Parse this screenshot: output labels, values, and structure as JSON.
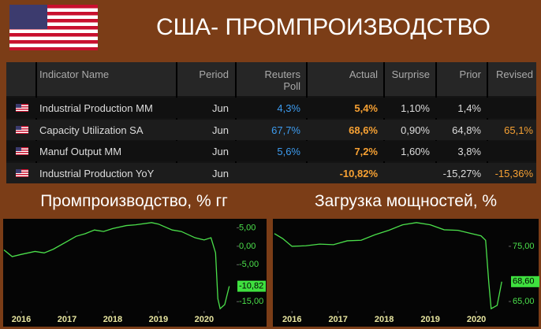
{
  "header": {
    "title": "США- ПРОМПРОИЗВОДСТВО"
  },
  "table": {
    "columns": [
      "Indicator Name",
      "Period",
      "Reuters Poll",
      "Actual",
      "Surprise",
      "Prior",
      "Revised"
    ],
    "rows": [
      [
        "Industrial Production MM",
        "Jun",
        "4,3%",
        "5,4%",
        "1,10%",
        "1,4%",
        null
      ],
      [
        "Capacity Utilization SA",
        "Jun",
        "67,7%",
        "68,6%",
        "0,90%",
        "64,8%",
        "65,1%"
      ],
      [
        "Manuf Output MM",
        "Jun",
        "5,6%",
        "7,2%",
        "1,60%",
        "3,8%",
        null
      ],
      [
        "Industrial Production YoY",
        "Jun",
        null,
        "-10,82%",
        null,
        "-15,27%",
        "-15,36%"
      ]
    ]
  },
  "chart_data": [
    {
      "type": "line",
      "title": "Промпроизводство, % гг",
      "color": "#4be04b",
      "x": [
        2015.62,
        2015.8,
        2016.0,
        2016.3,
        2016.5,
        2016.7,
        2017.0,
        2017.2,
        2017.4,
        2017.6,
        2017.8,
        2018.0,
        2018.3,
        2018.5,
        2018.85,
        2019.0,
        2019.3,
        2019.5,
        2019.8,
        2020.0,
        2020.15,
        2020.25,
        2020.3,
        2020.35,
        2020.45,
        2020.55
      ],
      "values": [
        -1.0,
        -2.8,
        -2.2,
        -1.4,
        -1.8,
        -0.8,
        1.3,
        2.7,
        3.4,
        4.4,
        4.0,
        4.8,
        5.6,
        5.8,
        6.4,
        6.0,
        4.4,
        4.0,
        2.3,
        1.7,
        2.3,
        -1.8,
        -14.2,
        -16.9,
        -15.8,
        -10.82
      ],
      "xlim": [
        2015.62,
        2020.71
      ],
      "xticks": [
        2016,
        2017,
        2018,
        2019,
        2020
      ],
      "ylim": [
        -17.5,
        7
      ],
      "yticks": [
        {
          "value": 5,
          "label": "5,00"
        },
        {
          "value": 0,
          "label": "0,00"
        },
        {
          "value": -5,
          "label": "-5,00"
        },
        {
          "value": -15,
          "label": "-15,00"
        }
      ],
      "last_value": {
        "value": -10.82,
        "label": "-10,82"
      }
    },
    {
      "type": "line",
      "title": "Загрузка мощностей, %",
      "color": "#4be04b",
      "x": [
        2015.62,
        2015.8,
        2016.0,
        2016.3,
        2016.6,
        2016.9,
        2017.2,
        2017.5,
        2017.8,
        2018.1,
        2018.4,
        2018.7,
        2019.0,
        2019.3,
        2019.6,
        2019.9,
        2020.1,
        2020.2,
        2020.27,
        2020.32,
        2020.45,
        2020.55
      ],
      "values": [
        77.3,
        76.4,
        75.0,
        75.1,
        75.4,
        75.3,
        76.0,
        76.1,
        77.1,
        77.9,
        78.9,
        79.3,
        78.9,
        78.0,
        77.9,
        77.3,
        76.9,
        76.1,
        68.3,
        63.7,
        64.3,
        68.6
      ],
      "xlim": [
        2015.62,
        2020.7
      ],
      "xticks": [
        2016,
        2017,
        2018,
        2019,
        2020
      ],
      "ylim": [
        63.3,
        79.7
      ],
      "yticks": [
        {
          "value": 75,
          "label": "75,00"
        },
        {
          "value": 65,
          "label": "65,00"
        }
      ],
      "last_value": {
        "value": 68.6,
        "label": "68,60"
      }
    }
  ]
}
